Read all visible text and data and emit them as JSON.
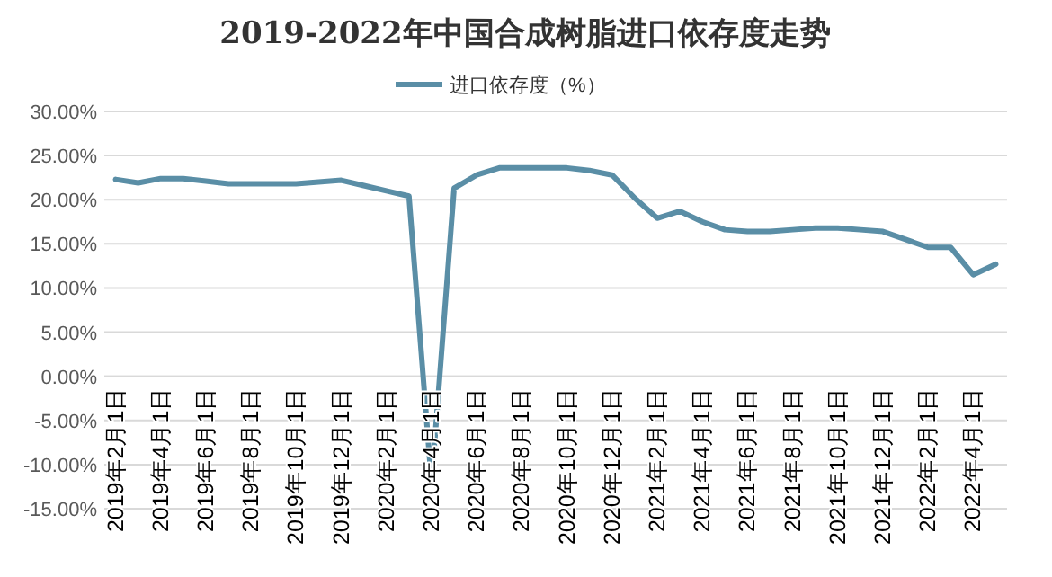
{
  "chart_data": {
    "type": "line",
    "title": "2019-2022年中国合成树脂进口依存度走势",
    "categories": [
      "2019年2月1日",
      null,
      "2019年4月1日",
      null,
      "2019年6月1日",
      null,
      "2019年8月1日",
      null,
      "2019年10月1日",
      null,
      "2019年12月1日",
      null,
      "2020年2月1日",
      null,
      "2020年4月1日",
      null,
      "2020年6月1日",
      null,
      "2020年8月1日",
      null,
      "2020年10月1日",
      null,
      "2020年12月1日",
      null,
      "2021年2月1日",
      null,
      "2021年4月1日",
      null,
      "2021年6月1日",
      null,
      "2021年8月1日",
      null,
      "2021年10月1日",
      null,
      "2021年12月1日",
      null,
      "2022年2月1日",
      null,
      "2022年4月1日",
      null
    ],
    "series": [
      {
        "name": "进口依存度（%）",
        "color": "#5a8ea6",
        "values": [
          22.3,
          21.9,
          22.4,
          22.4,
          22.1,
          21.8,
          21.8,
          21.8,
          21.8,
          22.0,
          22.2,
          21.6,
          21.0,
          20.4,
          -12.1,
          21.3,
          22.8,
          23.6,
          23.6,
          23.6,
          23.6,
          23.3,
          22.8,
          20.2,
          17.9,
          18.7,
          17.5,
          16.6,
          16.4,
          16.4,
          16.6,
          16.8,
          16.8,
          16.6,
          16.4,
          15.5,
          14.6,
          14.6,
          11.5,
          12.7
        ]
      }
    ],
    "ylim": [
      -15,
      30
    ],
    "yticks": [
      {
        "value": -15,
        "label": "-15.00%"
      },
      {
        "value": -10,
        "label": "-10.00%"
      },
      {
        "value": -5,
        "label": "-5.00%"
      },
      {
        "value": 0,
        "label": "0.00%"
      },
      {
        "value": 5,
        "label": "5.00%"
      },
      {
        "value": 10,
        "label": "10.00%"
      },
      {
        "value": 15,
        "label": "15.00%"
      },
      {
        "value": 20,
        "label": "20.00%"
      },
      {
        "value": 25,
        "label": "25.00%"
      },
      {
        "value": 30,
        "label": "30.00%"
      }
    ],
    "grid": "y",
    "legend": "top",
    "marker": "none",
    "line_style": "solid"
  }
}
